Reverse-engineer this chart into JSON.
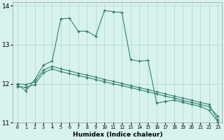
{
  "xlabel": "Humidex (Indice chaleur)",
  "background_color": "#d8f2ee",
  "grid_color": "#aed6cc",
  "line_color": "#2a7a6a",
  "xlim": [
    -0.5,
    23.5
  ],
  "ylim": [
    11.0,
    14.1
  ],
  "yticks": [
    11,
    12,
    13,
    14
  ],
  "xticks": [
    0,
    1,
    2,
    3,
    4,
    5,
    6,
    7,
    8,
    9,
    10,
    11,
    12,
    13,
    14,
    15,
    16,
    17,
    18,
    19,
    20,
    21,
    22,
    23
  ],
  "line1_x": [
    0,
    1,
    2,
    3,
    4,
    5,
    6,
    7,
    8,
    9,
    10,
    11,
    12,
    13,
    14,
    15,
    16,
    17,
    18,
    19,
    20,
    21,
    22,
    23
  ],
  "line1_y": [
    11.97,
    11.82,
    12.1,
    12.48,
    12.58,
    13.67,
    13.68,
    13.35,
    13.35,
    13.22,
    13.88,
    13.85,
    13.83,
    12.62,
    12.58,
    12.6,
    11.5,
    11.55,
    11.58,
    11.52,
    11.47,
    11.42,
    11.32,
    11.03
  ],
  "line2_x": [
    0,
    1,
    2,
    3,
    4,
    5,
    6,
    7,
    8,
    9,
    10,
    11,
    12,
    13,
    14,
    15,
    16,
    17,
    18,
    19,
    20,
    21,
    22,
    23
  ],
  "line2_y": [
    12.0,
    11.98,
    12.05,
    12.35,
    12.45,
    12.38,
    12.33,
    12.27,
    12.22,
    12.17,
    12.11,
    12.06,
    12.01,
    11.95,
    11.9,
    11.85,
    11.79,
    11.74,
    11.68,
    11.63,
    11.58,
    11.52,
    11.47,
    11.07
  ],
  "line3_x": [
    0,
    1,
    2,
    3,
    4,
    5,
    6,
    7,
    8,
    9,
    10,
    11,
    12,
    13,
    14,
    15,
    16,
    17,
    18,
    19,
    20,
    21,
    22,
    23
  ],
  "line3_y": [
    11.93,
    11.91,
    11.98,
    12.28,
    12.38,
    12.31,
    12.26,
    12.21,
    12.16,
    12.11,
    12.05,
    12.0,
    11.95,
    11.9,
    11.85,
    11.79,
    11.74,
    11.68,
    11.63,
    11.57,
    11.52,
    11.47,
    11.41,
    11.17
  ]
}
